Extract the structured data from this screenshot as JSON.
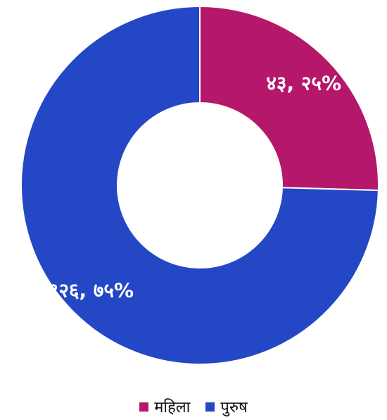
{
  "chart_data": {
    "type": "pie",
    "donut": true,
    "title": "",
    "categories": [
      "महिला",
      "पुरुष"
    ],
    "values": [
      43,
      126
    ],
    "percentages": [
      25,
      75
    ],
    "colors": [
      "#B5176B",
      "#2447C6"
    ],
    "data_labels": [
      "४३, २५%",
      "१२६, ७५%"
    ],
    "legend": {
      "position": "bottom",
      "items": [
        {
          "label": "महिला",
          "color": "#B5176B"
        },
        {
          "label": "पुरुष",
          "color": "#2447C6"
        }
      ]
    }
  }
}
